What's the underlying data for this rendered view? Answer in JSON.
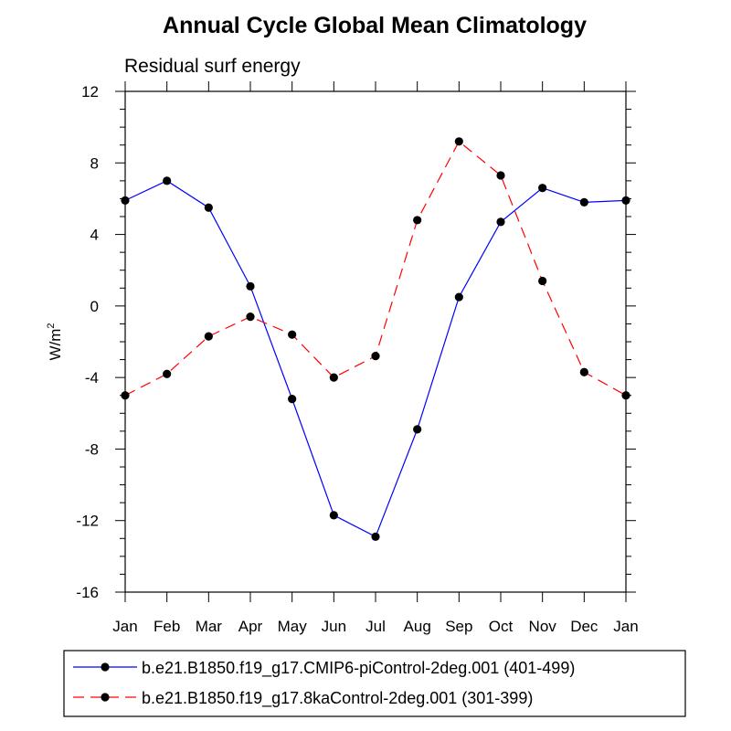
{
  "chart_data": {
    "type": "line",
    "title": "Annual Cycle Global Mean Climatology",
    "subtitle": "Residual surf energy",
    "xlabel": "",
    "ylabel_base": "W/m",
    "ylabel_superscript": "2",
    "ylim": [
      -16,
      12
    ],
    "yticks": [
      "12",
      "8",
      "4",
      "0",
      "-4",
      "-8",
      "-12",
      "-16"
    ],
    "ytick_values": [
      12,
      8,
      4,
      0,
      -4,
      -8,
      -12,
      -16
    ],
    "categories": [
      "Jan",
      "Feb",
      "Mar",
      "Apr",
      "May",
      "Jun",
      "Jul",
      "Aug",
      "Sep",
      "Oct",
      "Nov",
      "Dec",
      "Jan"
    ],
    "grid": false,
    "legend_position": "bottom",
    "series": [
      {
        "name": "b.e21.B1850.f19_g17.CMIP6-piControl-2deg.001 (401-499)",
        "color": "#0000ff",
        "dash": "solid",
        "values": [
          5.9,
          7.0,
          5.5,
          1.1,
          -5.2,
          -11.7,
          -12.9,
          -6.9,
          0.5,
          4.7,
          6.6,
          5.8,
          5.9
        ]
      },
      {
        "name": "b.e21.B1850.f19_g17.8kaControl-2deg.001 (301-399)",
        "color": "#ff0000",
        "dash": "dashed",
        "values": [
          -5.0,
          -3.8,
          -1.7,
          -0.6,
          -1.6,
          -4.0,
          -2.8,
          4.8,
          9.2,
          7.3,
          1.4,
          -3.7,
          -5.0
        ]
      }
    ]
  }
}
